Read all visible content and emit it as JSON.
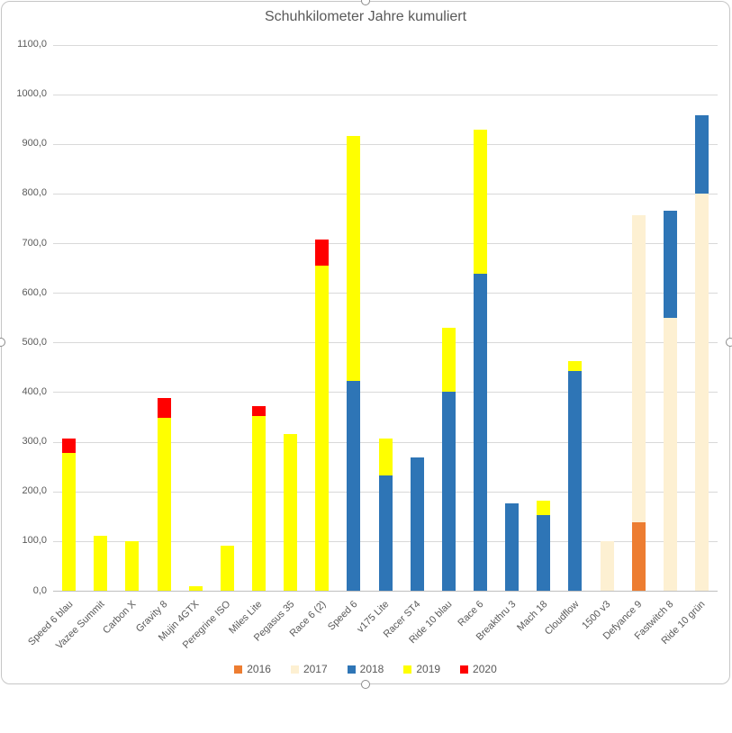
{
  "chart_data": {
    "type": "bar",
    "stacked": true,
    "title": "Schuhkilometer Jahre kumuliert",
    "categories": [
      "Speed 6 blau",
      "Vazee Summit",
      "Carbon X",
      "Gravity 8",
      "Mujin 4GTX",
      "Peregrine ISO",
      "Miles Lite",
      "Pegasus 35",
      "Race 6 (2)",
      "Speed 6",
      "v175 Lite",
      "Racer ST4",
      "Ride 10 blau",
      "Race 6",
      "Breakthru 3",
      "Mach 18",
      "Cloudflow",
      "1500 v3",
      "Defyance 9",
      "Fastwitch 8",
      "Ride 10 grün"
    ],
    "series": [
      {
        "name": "2016",
        "color": "#ED7D31",
        "values": [
          0,
          0,
          0,
          0,
          0,
          0,
          0,
          0,
          0,
          0,
          0,
          0,
          0,
          0,
          0,
          0,
          0,
          0,
          138,
          0,
          0
        ]
      },
      {
        "name": "2017",
        "color": "#FDF0D2",
        "values": [
          0,
          0,
          0,
          0,
          0,
          0,
          0,
          0,
          0,
          0,
          0,
          0,
          0,
          0,
          0,
          0,
          0,
          100,
          619,
          551,
          801
        ]
      },
      {
        "name": "2018",
        "color": "#2E75B6",
        "values": [
          0,
          0,
          0,
          0,
          0,
          0,
          0,
          0,
          0,
          423,
          233,
          270,
          402,
          639,
          177,
          153,
          444,
          0,
          0,
          215,
          157
        ]
      },
      {
        "name": "2019",
        "color": "#FFFF00",
        "values": [
          279,
          112,
          100,
          350,
          10,
          92,
          352,
          316,
          656,
          493,
          75,
          0,
          129,
          290,
          0,
          29,
          19,
          0,
          0,
          0,
          0
        ]
      },
      {
        "name": "2020",
        "color": "#FF0000",
        "values": [
          28,
          0,
          0,
          39,
          0,
          0,
          20,
          0,
          53,
          0,
          0,
          0,
          0,
          0,
          0,
          0,
          0,
          0,
          0,
          0,
          0
        ]
      }
    ],
    "ylim": [
      0,
      1100
    ],
    "ytick_step": 100,
    "ytick_labels": [
      "0,0",
      "100,0",
      "200,0",
      "300,0",
      "400,0",
      "500,0",
      "600,0",
      "700,0",
      "800,0",
      "900,0",
      "1000,0",
      "1100,0"
    ],
    "grid": true,
    "legend_position": "bottom",
    "colors": {
      "text": "#595959",
      "gridline": "#D9D9D9",
      "axis_line": "#BFBFBF",
      "frame_border": "#C6C6C6"
    }
  }
}
